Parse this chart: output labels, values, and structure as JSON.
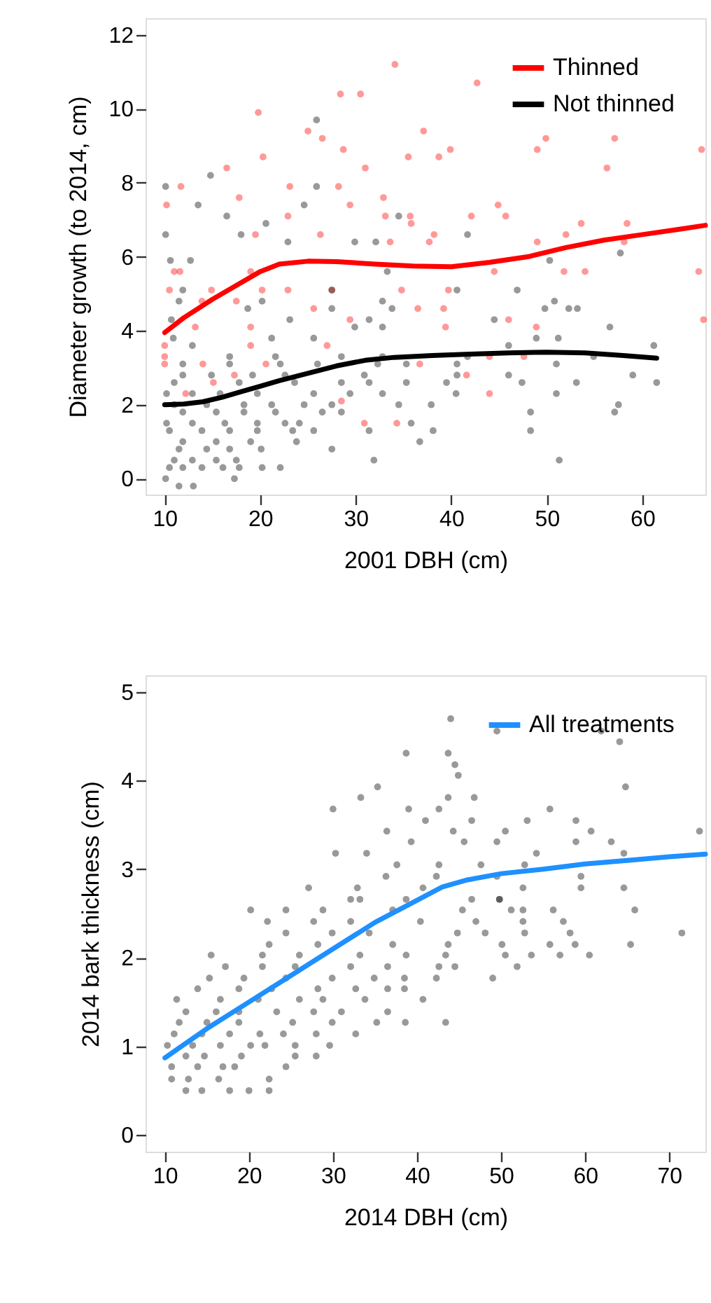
{
  "chart_data": [
    {
      "type": "scatter",
      "xlabel": "2001 DBH (cm)",
      "ylabel": "Diameter growth (to 2014, cm)",
      "xlim": [
        8,
        66.6
      ],
      "ylim": [
        -0.43,
        12.45
      ],
      "xticks": [
        10,
        20,
        30,
        40,
        50,
        60
      ],
      "yticks": [
        0,
        2,
        4,
        6,
        8,
        10,
        12
      ],
      "grid": false,
      "legend": "top right",
      "series": [
        {
          "type": "scatter",
          "marker": "circle",
          "color": "#ff0000",
          "x": [
            34.1,
            28.4,
            30.5,
            42.7,
            19.8,
            25.0,
            37.1,
            26.5,
            49.9,
            57.1,
            66.2,
            28.7,
            39.9,
            49.0,
            35.5,
            20.3,
            38.7,
            16.5,
            31.0,
            56.3,
            11.7,
            17.8,
            23.1,
            28.2,
            32.9,
            10.2,
            44.9,
            29.4,
            22.9,
            35.7,
            42.1,
            58.4,
            53.6,
            35.8,
            49.0,
            52.0,
            58.1,
            19.5,
            26.3,
            65.9,
            51.8,
            54.0,
            44.5,
            11.0,
            19.0,
            33.6,
            37.7,
            45.7,
            38.2,
            33.1,
            11.6,
            10.5,
            14.9,
            20.2,
            22.9,
            27.5,
            34.8,
            39.7,
            17.5,
            13.9,
            25.6,
            36.5,
            39.2,
            66.4,
            46.0,
            29.4,
            19.0,
            48.9,
            39.4,
            13.2,
            10.0,
            19.0,
            27.0,
            44.0,
            47.6,
            10.0,
            14.0,
            20.6,
            10.0,
            36.7,
            17.3,
            41.6,
            15.1,
            44.0,
            12.2,
            30.9,
            34.3,
            28.5
          ],
          "values": [
            11.2,
            10.4,
            10.4,
            10.7,
            9.9,
            9.4,
            9.4,
            9.2,
            9.2,
            9.2,
            8.9,
            8.9,
            8.9,
            8.9,
            8.7,
            8.7,
            8.7,
            8.4,
            8.4,
            8.4,
            7.9,
            7.6,
            7.9,
            7.9,
            7.6,
            7.4,
            7.4,
            7.4,
            7.1,
            7.1,
            7.1,
            6.9,
            6.9,
            6.9,
            6.4,
            6.6,
            6.4,
            6.6,
            6.6,
            5.6,
            5.6,
            5.6,
            5.6,
            5.6,
            5.6,
            6.4,
            6.4,
            7.1,
            6.6,
            7.1,
            5.6,
            5.1,
            5.1,
            5.1,
            5.1,
            5.1,
            5.1,
            5.1,
            4.8,
            4.8,
            4.6,
            4.6,
            4.6,
            4.3,
            4.3,
            4.3,
            4.1,
            4.1,
            4.1,
            4.1,
            3.6,
            3.6,
            3.6,
            3.3,
            3.3,
            3.3,
            3.1,
            3.1,
            3.1,
            3.1,
            2.8,
            2.8,
            2.6,
            2.3,
            2.3,
            1.5,
            1.5,
            2.1
          ]
        },
        {
          "type": "scatter",
          "marker": "circle",
          "color": "#000000",
          "x": [
            25.9,
            10.1,
            14.8,
            25.9,
            13.5,
            16.5,
            24.6,
            34.5,
            10.1,
            18.0,
            20.6,
            41.7,
            29.9,
            32.1,
            22.9,
            57.7,
            50.3,
            12.7,
            10.6,
            10.1,
            11.5,
            13.0,
            17.3,
            10.5,
            11.9,
            13.9,
            16.1,
            17.8,
            20.2,
            22.1,
            11.0,
            12.9,
            15.4,
            17.5,
            11.5,
            14.4,
            16.8,
            20.1,
            27.5,
            11.9,
            15.4,
            19.0,
            23.8,
            36.7,
            10.5,
            13.9,
            16.8,
            19.7,
            23.4,
            25.6,
            31.4,
            38.1,
            48.3,
            10.2,
            12.9,
            16.3,
            19.7,
            22.6,
            24.1,
            35.8,
            11.9,
            15.4,
            18.3,
            21.6,
            26.5,
            28.5,
            48.3,
            57.1,
            11.0,
            14.4,
            18.3,
            21.2,
            24.6,
            27.5,
            34.5,
            37.9,
            57.5,
            10.2,
            12.9,
            15.8,
            19.7,
            25.6,
            29.4,
            32.8,
            40.5,
            51.0,
            11.0,
            17.8,
            23.6,
            28.5,
            31.4,
            35.3,
            39.5,
            47.4,
            53.1,
            61.5,
            11.9,
            14.9,
            19.2,
            22.6,
            30.9,
            40.6,
            59.0,
            46.0,
            11.9,
            16.8,
            22.1,
            26.0,
            32.3,
            35.3,
            40.6,
            51.0,
            54.9,
            46.0,
            61.2,
            12.9,
            16.8,
            21.6,
            28.5,
            32.8,
            41.7,
            10.9,
            21.2,
            25.6,
            29.9,
            32.8,
            48.9,
            51.2,
            56.6,
            10.7,
            23.1,
            31.4,
            44.5,
            49.8,
            52.3,
            53.2,
            18.7,
            27.5,
            33.8,
            50.8,
            11.5,
            20.2,
            32.8,
            46.9,
            11.9,
            27.5,
            40.6,
            33.3,
            51.3,
            31.9
          ],
          "values": [
            9.7,
            7.9,
            8.2,
            7.9,
            7.4,
            7.1,
            7.4,
            7.1,
            6.6,
            6.6,
            6.9,
            6.6,
            6.4,
            6.4,
            6.4,
            6.1,
            5.9,
            5.9,
            5.9,
            0.0,
            -0.2,
            -0.2,
            0.0,
            0.3,
            0.3,
            0.3,
            0.3,
            0.3,
            0.3,
            0.3,
            0.5,
            0.5,
            0.5,
            0.5,
            0.8,
            0.8,
            0.8,
            0.8,
            0.8,
            1.0,
            1.0,
            1.0,
            1.0,
            1.0,
            1.3,
            1.3,
            1.3,
            1.3,
            1.3,
            1.3,
            1.3,
            1.3,
            1.3,
            1.5,
            1.5,
            1.5,
            1.5,
            1.5,
            1.5,
            1.5,
            1.8,
            1.8,
            1.8,
            1.8,
            1.8,
            1.8,
            1.8,
            1.8,
            2.0,
            2.0,
            2.0,
            2.0,
            2.0,
            2.0,
            2.0,
            2.0,
            2.0,
            2.3,
            2.3,
            2.3,
            2.3,
            2.3,
            2.3,
            2.3,
            2.3,
            2.3,
            2.6,
            2.6,
            2.6,
            2.6,
            2.6,
            2.6,
            2.6,
            2.6,
            2.6,
            2.6,
            2.8,
            2.8,
            2.8,
            2.8,
            2.8,
            2.8,
            2.8,
            2.8,
            3.1,
            3.1,
            3.1,
            3.1,
            3.1,
            3.1,
            3.1,
            3.1,
            3.3,
            3.6,
            3.6,
            3.6,
            3.3,
            3.3,
            3.3,
            3.3,
            3.3,
            3.8,
            3.8,
            3.8,
            4.1,
            4.1,
            3.8,
            3.8,
            4.1,
            4.3,
            4.3,
            4.3,
            4.3,
            4.6,
            4.6,
            4.6,
            4.6,
            4.6,
            4.6,
            4.8,
            4.8,
            4.8,
            4.8,
            5.1,
            5.1,
            5.1,
            5.1,
            5.6,
            0.5,
            0.5
          ]
        },
        {
          "type": "line",
          "name": "Thinned",
          "color": "#ff0000",
          "line_style": "solid",
          "x": [
            10,
            12,
            15,
            18,
            20,
            22,
            25,
            28,
            32,
            36,
            40,
            44,
            48,
            52,
            56,
            60,
            64,
            66.6
          ],
          "values": [
            3.95,
            4.35,
            4.85,
            5.3,
            5.6,
            5.8,
            5.88,
            5.87,
            5.8,
            5.75,
            5.73,
            5.85,
            6.0,
            6.25,
            6.45,
            6.6,
            6.75,
            6.85
          ]
        },
        {
          "type": "line",
          "name": "Not thinned",
          "color": "#000000",
          "line_style": "solid",
          "x": [
            10,
            12,
            14,
            16,
            18,
            20,
            22,
            25,
            28,
            31,
            34,
            38,
            42,
            46,
            50,
            54,
            58,
            61.5
          ],
          "values": [
            2.0,
            2.02,
            2.08,
            2.2,
            2.35,
            2.5,
            2.65,
            2.85,
            3.05,
            3.2,
            3.28,
            3.33,
            3.37,
            3.4,
            3.42,
            3.4,
            3.33,
            3.26
          ]
        }
      ]
    },
    {
      "type": "scatter",
      "xlabel": "2014 DBH (cm)",
      "ylabel": "2014 bark thickness (cm)",
      "xlim": [
        7.7,
        74.3
      ],
      "ylim": [
        -0.19,
        5.19
      ],
      "xticks": [
        10,
        20,
        30,
        40,
        50,
        60,
        70
      ],
      "yticks": [
        0,
        1,
        2,
        3,
        4,
        5
      ],
      "grid": false,
      "legend": "top right",
      "series": [
        {
          "type": "scatter",
          "marker": "circle",
          "color": "#000000",
          "x": [
            44.0,
            49.5,
            61.9,
            64.1,
            38.7,
            43.7,
            44.5,
            44.9,
            35.3,
            64.8,
            33.3,
            43.7,
            46.8,
            30.0,
            39.0,
            42.6,
            55.8,
            41.0,
            46.5,
            53.1,
            58.9,
            36.4,
            44.3,
            50.5,
            60.7,
            73.6,
            30.3,
            34.0,
            39.3,
            49.5,
            58.9,
            63.1,
            45.6,
            64.6,
            54.2,
            37.6,
            42.6,
            47.6,
            52.8,
            36.3,
            42.3,
            49.5,
            59.5,
            27.1,
            32.9,
            40.7,
            52.6,
            59.5,
            64.6,
            32.1,
            38.7,
            49.8,
            33.2,
            46.5,
            49.8,
            20.2,
            24.4,
            28.8,
            37.1,
            45.4,
            51.2,
            56.2,
            65.9,
            52.6,
            22.2,
            27.7,
            32.1,
            40.4,
            47.0,
            52.6,
            57.4,
            24.4,
            29.9,
            34.3,
            44.8,
            48.1,
            52.8,
            58.2,
            71.5,
            22.4,
            28.2,
            37.1,
            43.7,
            50.1,
            55.8,
            58.8,
            65.4,
            15.5,
            21.6,
            26.0,
            33.2,
            38.7,
            43.4,
            50.5,
            53.6,
            57.0,
            60.5,
            17.2,
            21.6,
            25.5,
            32.1,
            36.5,
            42.6,
            44.5,
            51.9,
            15.3,
            19.4,
            24.4,
            29.9,
            34.9,
            38.5,
            42.3,
            49.0,
            13.9,
            18.8,
            22.7,
            28.2,
            32.7,
            36.5,
            38.5,
            11.4,
            16.6,
            21.1,
            26.0,
            28.8,
            33.8,
            40.7,
            12.5,
            16.1,
            18.8,
            23.3,
            27.7,
            31.0,
            36.5,
            11.7,
            15.0,
            18.8,
            25.2,
            29.9,
            35.2,
            38.6,
            43.4,
            11.1,
            14.4,
            17.7,
            21.3,
            24.1,
            28.0,
            32.7,
            10.3,
            13.3,
            16.6,
            20.2,
            21.9,
            25.5,
            29.6,
            12.5,
            14.7,
            19.1,
            25.5,
            28.0,
            10.8,
            13.9,
            16.9,
            18.3,
            24.4,
            10.8,
            12.8,
            16.4,
            22.4,
            12.5,
            14.4,
            17.7,
            20.0,
            22.4
          ],
          "values": [
            4.7,
            4.56,
            4.56,
            4.44,
            4.31,
            4.31,
            4.18,
            4.06,
            3.93,
            3.93,
            3.81,
            3.81,
            3.81,
            3.68,
            3.68,
            3.68,
            3.68,
            3.55,
            3.55,
            3.55,
            3.55,
            3.43,
            3.43,
            3.43,
            3.43,
            3.43,
            3.18,
            3.18,
            3.31,
            3.31,
            3.31,
            3.31,
            3.31,
            3.18,
            3.18,
            3.05,
            3.05,
            3.05,
            3.05,
            2.92,
            2.92,
            2.92,
            2.92,
            2.79,
            2.79,
            2.79,
            2.79,
            2.79,
            2.79,
            2.66,
            2.66,
            2.66,
            2.66,
            2.66,
            2.66,
            2.54,
            2.54,
            2.54,
            2.54,
            2.54,
            2.54,
            2.54,
            2.54,
            2.54,
            2.41,
            2.41,
            2.41,
            2.41,
            2.41,
            2.41,
            2.41,
            2.28,
            2.28,
            2.28,
            2.28,
            2.28,
            2.28,
            2.28,
            2.28,
            2.15,
            2.15,
            2.15,
            2.15,
            2.15,
            2.15,
            2.15,
            2.15,
            2.03,
            2.03,
            2.03,
            2.03,
            2.03,
            2.03,
            2.03,
            2.03,
            2.03,
            2.03,
            1.9,
            1.9,
            1.9,
            1.9,
            1.9,
            1.9,
            1.9,
            1.9,
            1.77,
            1.77,
            1.77,
            1.77,
            1.77,
            1.77,
            1.77,
            1.77,
            1.65,
            1.65,
            1.65,
            1.65,
            1.65,
            1.65,
            1.65,
            1.53,
            1.53,
            1.53,
            1.53,
            1.53,
            1.53,
            1.53,
            1.39,
            1.39,
            1.39,
            1.39,
            1.39,
            1.39,
            1.39,
            1.27,
            1.27,
            1.27,
            1.27,
            1.27,
            1.27,
            1.27,
            1.27,
            1.14,
            1.14,
            1.14,
            1.14,
            1.14,
            1.14,
            1.14,
            1.01,
            1.01,
            1.01,
            1.01,
            1.01,
            1.01,
            1.01,
            0.89,
            0.89,
            0.89,
            0.89,
            0.89,
            0.77,
            0.77,
            0.77,
            0.77,
            0.77,
            0.63,
            0.63,
            0.63,
            0.63,
            0.5,
            0.5,
            0.5,
            0.5,
            0.5
          ]
        },
        {
          "type": "line",
          "name": "All treatments",
          "color": "#1e90ff",
          "line_style": "solid",
          "x": [
            10,
            15,
            20,
            25,
            30,
            35,
            40,
            43,
            46,
            50,
            55,
            60,
            65,
            70,
            74.3
          ],
          "values": [
            0.87,
            1.2,
            1.5,
            1.8,
            2.1,
            2.4,
            2.65,
            2.8,
            2.88,
            2.95,
            3.0,
            3.06,
            3.1,
            3.14,
            3.17
          ]
        }
      ]
    }
  ]
}
